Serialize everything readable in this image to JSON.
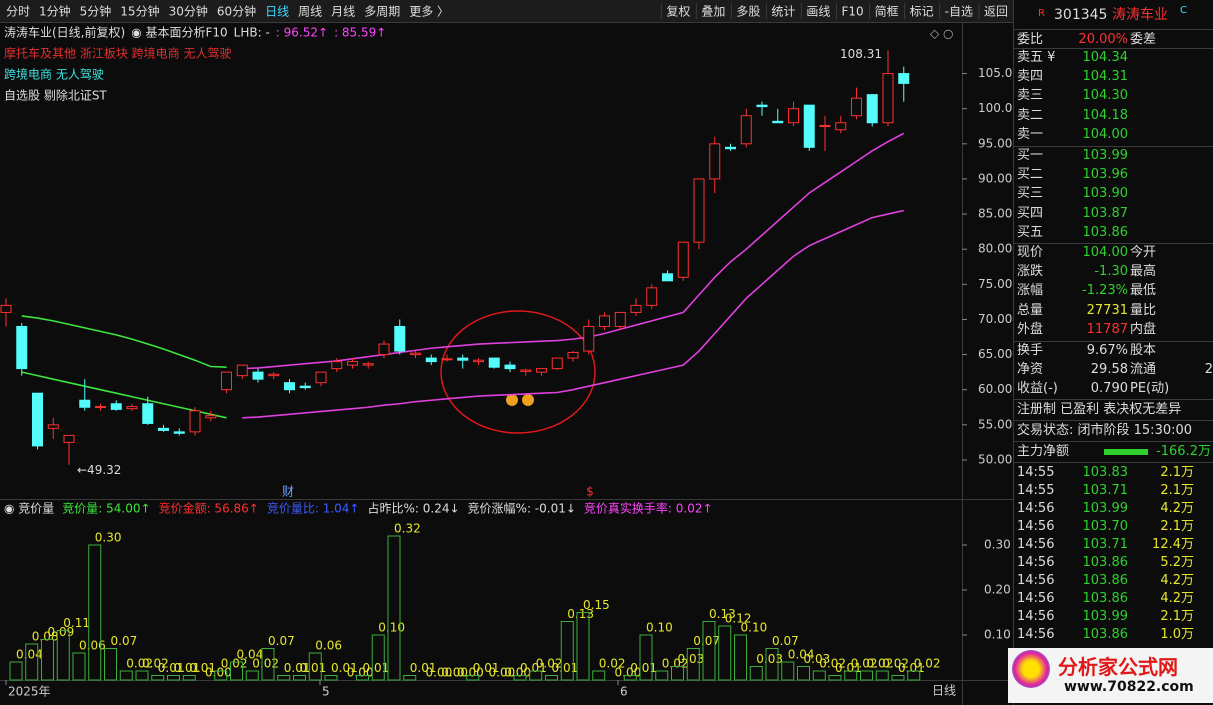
{
  "toolbar": {
    "left": [
      "分时",
      "1分钟",
      "5分钟",
      "15分钟",
      "30分钟",
      "60分钟",
      "日线",
      "周线",
      "月线",
      "多周期",
      "更多 〉"
    ],
    "active": "日线",
    "right": [
      "复权",
      "叠加",
      "多股",
      "统计",
      "画线",
      "F10",
      "简框",
      "标记",
      "-自选",
      "返回"
    ]
  },
  "price_chart": {
    "header": [
      {
        "text": "涛涛车业(日线,前复权)",
        "color": "#dddddd"
      },
      {
        "text": "◉ 基本面分析F10",
        "color": "#dddddd"
      },
      {
        "text": "LHB: -",
        "color": "#dddddd"
      },
      {
        "text": ": 96.52↑",
        "color": "#ff44ff"
      },
      {
        "text": ": 85.59↑",
        "color": "#ff44ff"
      }
    ],
    "tags": [
      {
        "text": "摩托车及其他 浙江板块 跨境电商 无人驾驶",
        "color": "#e03030"
      },
      {
        "text": "跨境电商 无人驾驶",
        "color": "#40e0e0"
      },
      {
        "text": "自选股 剔除北证ST",
        "color": "#dddddd"
      }
    ],
    "up_color": "#ff3030",
    "down_color": "#54fcfc",
    "ylim": [
      44.3,
      111.2
    ],
    "yticks": [
      {
        "value": 50,
        "label": "50.00"
      },
      {
        "value": 55,
        "label": "55.00"
      },
      {
        "value": 60,
        "label": "60.00"
      },
      {
        "value": 65,
        "label": "65.00"
      },
      {
        "value": 70,
        "label": "70.00"
      },
      {
        "value": 75,
        "label": "75.00"
      },
      {
        "value": 80,
        "label": "80.00"
      },
      {
        "value": 85,
        "label": "85.00"
      },
      {
        "value": 90,
        "label": "90.00"
      },
      {
        "value": 95,
        "label": "95.00"
      },
      {
        "value": 100,
        "label": "100.0"
      },
      {
        "value": 105,
        "label": "105.0"
      }
    ],
    "candles": [
      [
        71,
        73,
        69,
        72
      ],
      [
        69,
        69.5,
        62,
        63
      ],
      [
        59.5,
        59.5,
        51.5,
        52
      ],
      [
        54.5,
        56,
        53,
        55
      ],
      [
        52.5,
        53,
        49.32,
        53.5
      ],
      [
        58.5,
        61.5,
        57,
        57.5
      ],
      [
        57.5,
        58,
        57,
        57.6
      ],
      [
        58,
        58.5,
        57,
        57.2
      ],
      [
        57.3,
        58,
        57,
        57.6
      ],
      [
        58,
        59,
        55,
        55.2
      ],
      [
        54.5,
        55,
        54,
        54.2
      ],
      [
        54,
        54.5,
        53.5,
        53.8
      ],
      [
        54,
        57.5,
        53.5,
        57
      ],
      [
        56,
        57,
        55.5,
        56.3
      ],
      [
        60,
        62.5,
        59.5,
        62.5
      ],
      [
        62,
        63.5,
        61.5,
        63.5
      ],
      [
        62.5,
        63,
        61,
        61.5
      ],
      [
        62,
        62.5,
        61.5,
        62.2
      ],
      [
        61,
        61.5,
        59.5,
        60
      ],
      [
        60.5,
        61,
        60,
        60.3
      ],
      [
        61,
        62.5,
        60.5,
        62.5
      ],
      [
        63,
        64.5,
        62.5,
        64
      ],
      [
        63.5,
        64.5,
        63,
        64
      ],
      [
        63.5,
        64,
        63,
        63.7
      ],
      [
        65,
        67,
        64.5,
        66.5
      ],
      [
        69,
        70,
        65,
        65.5
      ],
      [
        65,
        65.5,
        64.5,
        65.2
      ],
      [
        64.5,
        65,
        63.5,
        64
      ],
      [
        64.3,
        65,
        64,
        64.4
      ],
      [
        64.5,
        65,
        63,
        64.2
      ],
      [
        64,
        64.5,
        63.5,
        64.2
      ],
      [
        64.5,
        64.5,
        63,
        63.2
      ],
      [
        63.5,
        64,
        62.5,
        63
      ],
      [
        62.6,
        63,
        62,
        62.8
      ],
      [
        62.5,
        63,
        62,
        63
      ],
      [
        63,
        64.5,
        62.8,
        64.5
      ],
      [
        64.5,
        65.5,
        64,
        65.3
      ],
      [
        65.5,
        70,
        65,
        69
      ],
      [
        69,
        71,
        68.5,
        70.5
      ],
      [
        69,
        71,
        68.5,
        71
      ],
      [
        71,
        73,
        70.5,
        72
      ],
      [
        72,
        75,
        71.5,
        74.5
      ],
      [
        76.5,
        77,
        75.5,
        75.5
      ],
      [
        76,
        81,
        75.5,
        81
      ],
      [
        81,
        90,
        80,
        90
      ],
      [
        90,
        96,
        88,
        95
      ],
      [
        94.5,
        95,
        94,
        94.3
      ],
      [
        95,
        100,
        94.5,
        99
      ],
      [
        100.5,
        101,
        99,
        100.3
      ],
      [
        98.2,
        100,
        98,
        98
      ],
      [
        98,
        101,
        97.5,
        100
      ],
      [
        100.5,
        100.5,
        94,
        94.5
      ],
      [
        97.5,
        99,
        94,
        97.6
      ],
      [
        97,
        99,
        96.5,
        98
      ],
      [
        99,
        103,
        98.5,
        101.5
      ],
      [
        102,
        102,
        97.5,
        98
      ],
      [
        98,
        108.31,
        97.5,
        105
      ],
      [
        105,
        106,
        101,
        103.6
      ]
    ],
    "lines": [
      {
        "color": "#3ce63c",
        "values": [
          null,
          70.5,
          70.2,
          69.8,
          69.3,
          68.8,
          68.3,
          67.8,
          67.2,
          66.5,
          65.8,
          65,
          64.2,
          63.3,
          63.2,
          null,
          null,
          null,
          null,
          null,
          null,
          null,
          null,
          null,
          null,
          null,
          null,
          null,
          null,
          null,
          null,
          null,
          null,
          null,
          null,
          null,
          null,
          null,
          null,
          null,
          null,
          null,
          null,
          null,
          null,
          null,
          null,
          null,
          null,
          null,
          null,
          null,
          null,
          null,
          null,
          null,
          null,
          null
        ]
      },
      {
        "color": "#3ce63c",
        "values": [
          null,
          62.5,
          62,
          61.5,
          61,
          60.5,
          60,
          59.5,
          59,
          58.5,
          58,
          57.5,
          57,
          56.5,
          56,
          null,
          null,
          null,
          null,
          null,
          null,
          null,
          null,
          null,
          null,
          null,
          null,
          null,
          null,
          null,
          null,
          null,
          null,
          null,
          null,
          null,
          null,
          null,
          null,
          null,
          null,
          null,
          null,
          null,
          null,
          null,
          null,
          null,
          null,
          null,
          null,
          null,
          null,
          null,
          null,
          null,
          null,
          null
        ]
      },
      {
        "color": "#e040e0",
        "values": [
          null,
          null,
          null,
          null,
          null,
          null,
          null,
          null,
          null,
          null,
          null,
          null,
          null,
          null,
          null,
          63,
          63.1,
          63.3,
          63.5,
          63.7,
          63.9,
          64.1,
          64.4,
          64.7,
          65,
          65.3,
          65.6,
          65.9,
          66.1,
          66.3,
          66.5,
          66.6,
          66.7,
          66.8,
          66.9,
          67,
          67.2,
          67.5,
          68,
          68.6,
          69.2,
          69.8,
          70.4,
          71,
          73.5,
          76,
          78.2,
          80,
          82,
          84,
          86,
          88,
          89.5,
          91,
          92.5,
          94,
          95.3,
          96.5
        ]
      },
      {
        "color": "#e040e0",
        "values": [
          null,
          null,
          null,
          null,
          null,
          null,
          null,
          null,
          null,
          null,
          null,
          null,
          null,
          null,
          null,
          56,
          56.1,
          56.3,
          56.5,
          56.7,
          56.9,
          57.1,
          57.3,
          57.5,
          57.8,
          58,
          58.3,
          58.5,
          58.7,
          58.9,
          59.1,
          59.2,
          59.3,
          59.4,
          59.5,
          59.6,
          60,
          60.5,
          61,
          61.5,
          62,
          62.5,
          63,
          63.5,
          65.5,
          68,
          70.5,
          73,
          75,
          77,
          79,
          80.5,
          81.5,
          82.5,
          83.5,
          84.5,
          85,
          85.5
        ]
      }
    ],
    "annotations": {
      "high": "108.31",
      "low": "←49.32"
    },
    "markers": [
      {
        "text": "财",
        "color": "#6fa0ff"
      },
      {
        "text": "$",
        "color": "#ff3030"
      }
    ]
  },
  "volume_chart": {
    "header": [
      {
        "text": "◉ 竞价量",
        "color": "#dddddd"
      },
      {
        "text": "竞价量: 54.00↑",
        "color": "#3ce63c"
      },
      {
        "text": "竞价金额: 56.86↑",
        "color": "#ff3030"
      },
      {
        "text": "竞价量比: 1.04↑",
        "color": "#3b5bff"
      },
      {
        "text": "占昨比%: 0.24↓",
        "color": "#dddddd"
      },
      {
        "text": "竞价涨幅%: -0.01↓",
        "color": "#dddddd"
      },
      {
        "text": "竞价真实换手率: 0.02↑",
        "color": "#ff44ff"
      }
    ],
    "color": "#3fae3f",
    "label_color": "#e6e62e",
    "ylim": [
      0,
      0.36
    ],
    "yticks": [
      {
        "value": 0.1,
        "label": "0.10"
      },
      {
        "value": 0.2,
        "label": "0.20"
      },
      {
        "value": 0.3,
        "label": "0.30"
      }
    ],
    "values": [
      0.04,
      0.08,
      0.09,
      0.11,
      0.06,
      0.3,
      0.07,
      0.02,
      0.02,
      0.01,
      0.01,
      0.01,
      0,
      0.02,
      0.04,
      0.02,
      0.07,
      0.01,
      0.01,
      0.06,
      0.01,
      0,
      0.01,
      0.1,
      0.32,
      0.01,
      0,
      0,
      0,
      0.01,
      0,
      0,
      0.01,
      0.02,
      0.01,
      0.13,
      0.15,
      0.02,
      0,
      0.01,
      0.1,
      0.02,
      0.03,
      0.07,
      0.13,
      0.12,
      0.1,
      0.03,
      0.07,
      0.04,
      0.03,
      0.02,
      0.01,
      0.02,
      0.02,
      0.02,
      0.01,
      0.02
    ],
    "value_labels": [
      "0.04",
      "0.08",
      "0.09",
      "0.11",
      "0.06",
      "0.30",
      "0.07",
      "0.02",
      "0.02",
      "0.01",
      "0.01",
      "0.01",
      "0.00",
      "0.02",
      "0.04",
      "0.02",
      "0.07",
      "0.01",
      "0.01",
      "0.06",
      "0.01",
      "0.00",
      "0.01",
      "0.10",
      "0.32",
      "0.01",
      "0.00",
      "0.00",
      "0.00",
      "0.01",
      "0.00",
      "0.00",
      "0.01",
      "0.02",
      "0.01",
      "0.13",
      "0.15",
      "0.02",
      "0.00",
      "0.01",
      "0.10",
      "0.02",
      "0.03",
      "0.07",
      "0.13",
      "0.12",
      "0.10",
      "0.03",
      "0.07",
      "0.04",
      "0.03",
      "0.02",
      "0.01",
      "0.02",
      "0.02",
      "0.02",
      "0.01",
      "0.02"
    ]
  },
  "time_axis": [
    "2025年",
    "5",
    "6"
  ],
  "period_label": "日线",
  "quote": {
    "badge": "R",
    "code": "301345",
    "name": "涛涛车业",
    "suffix": "C",
    "order_ratio": {
      "cells": [
        "委比",
        "20.00%",
        "委差"
      ],
      "color": "#ff3030"
    },
    "asks": [
      [
        "卖五 ¥",
        "104.34"
      ],
      [
        "卖四",
        "104.31"
      ],
      [
        "卖三",
        "104.30"
      ],
      [
        "卖二",
        "104.18"
      ],
      [
        "卖一",
        "104.00"
      ]
    ],
    "bids": [
      [
        "买一",
        "103.99"
      ],
      [
        "买二",
        "103.96"
      ],
      [
        "买三",
        "103.90"
      ],
      [
        "买四",
        "103.87"
      ],
      [
        "买五",
        "103.86"
      ]
    ],
    "book_color": "#2fd12f",
    "stats": [
      {
        "cells": [
          "现价",
          "104.00",
          "今开"
        ],
        "color": "#2fd12f"
      },
      {
        "cells": [
          "涨跌",
          "-1.30",
          "最高"
        ],
        "color": "#2fd12f"
      },
      {
        "cells": [
          "涨幅",
          "-1.23%",
          "最低"
        ],
        "color": "#2fd12f"
      },
      {
        "cells": [
          "总量",
          "27731",
          "量比"
        ],
        "color": "#e6e62e"
      },
      {
        "cells": [
          "外盘",
          "11787",
          "内盘"
        ],
        "color": "#ff3030"
      }
    ],
    "finance": [
      {
        "cells": [
          "换手",
          "9.67%",
          "股本"
        ],
        "color": "#dddddd"
      },
      {
        "cells": [
          "净资",
          "29.58",
          "流通",
          "2"
        ],
        "color": "#dddddd"
      },
      {
        "cells": [
          "收益(-)",
          "0.790",
          "PE(动)"
        ],
        "color": "#dddddd"
      }
    ],
    "flags": "注册制 已盈利 表决权无差异",
    "trade_status": "交易状态: 闭市阶段 15:30:00",
    "main_flow": {
      "label": "主力净额",
      "value": "-166.2万"
    },
    "ticks": [
      [
        "14:55",
        "103.83",
        "2.1万"
      ],
      [
        "14:55",
        "103.71",
        "2.1万"
      ],
      [
        "14:56",
        "103.99",
        "4.2万"
      ],
      [
        "14:56",
        "103.70",
        "2.1万"
      ],
      [
        "14:56",
        "103.71",
        "12.4万"
      ],
      [
        "14:56",
        "103.86",
        "5.2万"
      ],
      [
        "14:56",
        "103.86",
        "4.2万"
      ],
      [
        "14:56",
        "103.86",
        "4.2万"
      ],
      [
        "14:56",
        "103.99",
        "2.1万"
      ],
      [
        "14:56",
        "103.86",
        "1.0万"
      ]
    ]
  },
  "watermark": "分析家公式网",
  "watermark_url": "www.70822.com"
}
